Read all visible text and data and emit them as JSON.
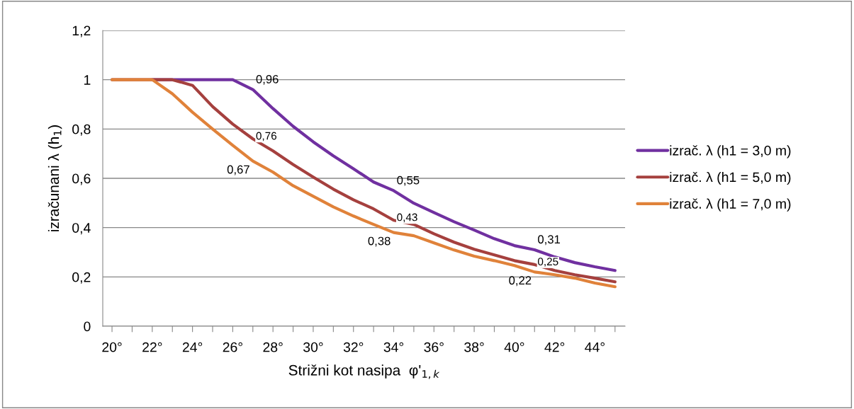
{
  "chart_data": {
    "type": "line",
    "xlabel": "Strižni kot nasipa  φ'$_{1,k}$",
    "ylabel": "izračunani λ (h$_{1}$)",
    "categories": [
      "20°",
      null,
      "22°",
      null,
      "24°",
      null,
      "26°",
      null,
      "28°",
      null,
      "30°",
      null,
      "32°",
      null,
      "34°",
      null,
      "36°",
      null,
      "38°",
      null,
      "40°",
      null,
      "42°",
      null,
      "44°",
      null
    ],
    "series": [
      {
        "name": "izrač. λ (h1 = 3,0 m)",
        "color": "#7030a0",
        "values": [
          null,
          null,
          1,
          1,
          1,
          1,
          1,
          0.96,
          0.883,
          0.811,
          0.748,
          0.691,
          0.639,
          0.585,
          0.55,
          0.499,
          0.461,
          0.424,
          0.39,
          0.355,
          0.327,
          0.31,
          0.281,
          0.258,
          0.241,
          0.226
        ],
        "value_labels": [
          null,
          null,
          null,
          null,
          null,
          null,
          null,
          "0,96",
          null,
          null,
          null,
          null,
          null,
          null,
          "0,55",
          null,
          null,
          null,
          null,
          null,
          null,
          "0,31",
          null,
          null,
          null,
          null
        ]
      },
      {
        "name": "izrač. λ (h1 = 5,0 m)",
        "color": "#a5403e",
        "values": [
          1,
          1,
          1,
          1,
          0.977,
          0.891,
          0.82,
          0.76,
          0.711,
          0.656,
          0.605,
          0.556,
          0.513,
          0.476,
          0.43,
          0.413,
          0.375,
          0.341,
          0.312,
          0.289,
          0.266,
          0.25,
          0.226,
          0.209,
          0.195,
          0.18
        ],
        "value_labels": [
          null,
          null,
          null,
          null,
          null,
          null,
          null,
          "0,76",
          null,
          null,
          null,
          null,
          null,
          null,
          "0,43",
          null,
          null,
          null,
          null,
          null,
          null,
          "0,25",
          null,
          null,
          null,
          null
        ]
      },
      {
        "name": "izrač. λ (h1 = 7,0 m)",
        "color": "#e0823a",
        "values": [
          1,
          1,
          1,
          0.943,
          0.868,
          0.8,
          0.734,
          0.67,
          0.625,
          0.57,
          0.527,
          0.484,
          0.447,
          0.413,
          0.38,
          0.367,
          0.338,
          0.309,
          0.284,
          0.266,
          0.246,
          0.22,
          0.209,
          0.195,
          0.175,
          0.16
        ],
        "value_labels": [
          null,
          null,
          null,
          null,
          null,
          null,
          null,
          "0,67",
          null,
          null,
          null,
          null,
          null,
          null,
          "0,38",
          null,
          null,
          null,
          null,
          null,
          null,
          "0,22",
          null,
          null,
          null,
          null
        ]
      }
    ],
    "ylim": [
      0,
      1.2
    ],
    "yticks": [
      0,
      {
        "value": 0.2,
        "label": "0,2"
      },
      {
        "value": 0.4,
        "label": "0,4"
      },
      {
        "value": 0.6,
        "label": "0,6"
      },
      {
        "value": 0.8,
        "label": "0,8"
      },
      1,
      {
        "value": 1.2,
        "label": "1,2"
      }
    ],
    "grid": "y",
    "legend": "right",
    "marker": "none",
    "line_style": "solid"
  }
}
